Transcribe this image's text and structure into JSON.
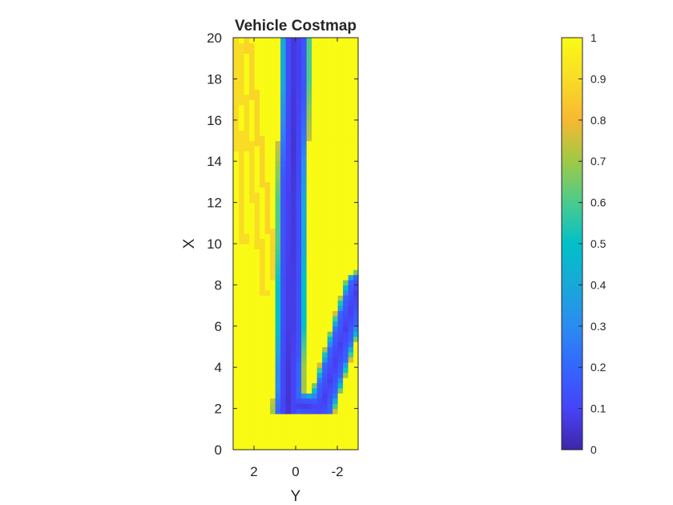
{
  "chart_data": {
    "type": "heatmap",
    "title": "Vehicle Costmap",
    "xlabel": "Y",
    "ylabel": "X",
    "x_axis_reversed": true,
    "xlim": [
      -3,
      3
    ],
    "ylim": [
      0,
      20
    ],
    "x_ticks": [
      2,
      0,
      -2
    ],
    "x_tick_labels": [
      "2",
      "0",
      "-2"
    ],
    "y_ticks": [
      0,
      2,
      4,
      6,
      8,
      10,
      12,
      14,
      16,
      18,
      20
    ],
    "y_tick_labels": [
      "0",
      "2",
      "4",
      "6",
      "8",
      "10",
      "12",
      "14",
      "16",
      "18",
      "20"
    ],
    "cell_size": 0.25,
    "colormap": "parula",
    "clim": [
      0,
      1
    ],
    "colorbar": {
      "ticks": [
        0,
        0.1,
        0.2,
        0.3,
        0.4,
        0.5,
        0.6,
        0.7,
        0.8,
        0.9,
        1
      ],
      "tick_labels": [
        "0",
        "0.1",
        "0.2",
        "0.3",
        "0.4",
        "0.5",
        "0.6",
        "0.7",
        "0.8",
        "0.9",
        "1"
      ]
    },
    "free_space": [
      {
        "x": 1.75,
        "y": 0.4
      },
      {
        "x": 2,
        "y": 0.4
      },
      {
        "x": 3,
        "y": 0.35
      },
      {
        "x": 4,
        "y": 0.35
      },
      {
        "x": 5,
        "y": 0.3
      },
      {
        "x": 6,
        "y": 0.25
      },
      {
        "x": 8,
        "y": 0.25
      },
      {
        "x": 10,
        "y": 0.2
      },
      {
        "x": 12,
        "y": 0.2
      },
      {
        "x": 14,
        "y": 0.15
      },
      {
        "x": 16,
        "y": 0.1
      },
      {
        "x": 18,
        "y": 0.05
      },
      {
        "x": 20,
        "y": 0.05
      }
    ],
    "free_space_width": 0.9,
    "branch": [
      {
        "x": 2.0,
        "y": -1.2
      },
      {
        "x": 4.0,
        "y": -1.8
      },
      {
        "x": 6.0,
        "y": -2.4
      },
      {
        "x": 8.0,
        "y": -3.0
      }
    ],
    "branch_width": 0.9,
    "obstacle_bands": [
      {
        "x0": 7.5,
        "y0": 0.9,
        "x1": 20,
        "y1": 2.3,
        "value": 0.88
      },
      {
        "x0": 7.5,
        "y0": 1.5,
        "x1": 20,
        "y1": 2.8,
        "value": 0.9
      },
      {
        "x0": 10,
        "y0": 2.5,
        "x1": 20,
        "y1": 3.0,
        "value": 0.9
      },
      {
        "x0": 6,
        "y0": -2.5,
        "x1": 8.5,
        "y1": -3.0,
        "value": 0.9
      }
    ]
  }
}
